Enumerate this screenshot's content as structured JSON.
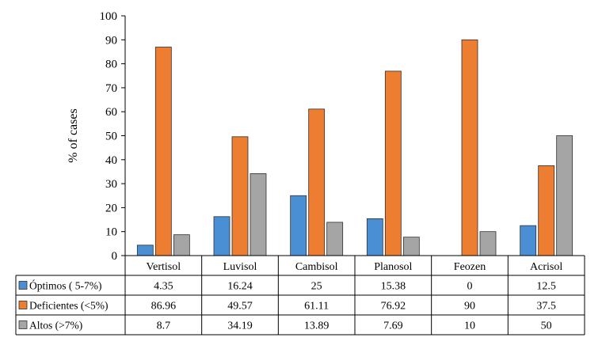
{
  "chart_data": {
    "type": "bar",
    "title": "",
    "xlabel": "",
    "ylabel": "% of cases",
    "ylim": [
      0,
      100
    ],
    "yticks": [
      0,
      10,
      20,
      30,
      40,
      50,
      60,
      70,
      80,
      90,
      100
    ],
    "grid": false,
    "legend": "data-table-left",
    "categories": [
      "Vertisol",
      "Luvisol",
      "Cambisol",
      "Planosol",
      "Feozen",
      "Acrisol"
    ],
    "series": [
      {
        "name": "Óptimos ( 5-7%)",
        "color": "#4a8fd4",
        "values": [
          4.35,
          16.24,
          25,
          15.38,
          0,
          12.5
        ],
        "labels": [
          "4.35",
          "16.24",
          "25",
          "15.38",
          "0",
          "12.5"
        ]
      },
      {
        "name": "Deficientes (<5%)",
        "color": "#ed7d31",
        "values": [
          86.96,
          49.57,
          61.11,
          76.92,
          90,
          37.5
        ],
        "labels": [
          "86.96",
          "49.57",
          "61.11",
          "76.92",
          "90",
          "37.5"
        ]
      },
      {
        "name": "Altos (>7%)",
        "color": "#a5a5a5",
        "values": [
          8.7,
          34.19,
          13.89,
          7.69,
          10,
          50
        ],
        "labels": [
          "8.7",
          "34.19",
          "13.89",
          "7.69",
          "10",
          "50"
        ]
      }
    ]
  }
}
